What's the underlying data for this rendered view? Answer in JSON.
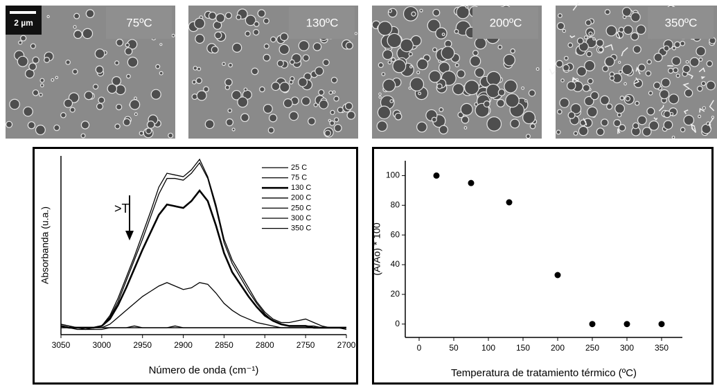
{
  "images": [
    {
      "label": "75ºC"
    },
    {
      "label": "130ºC"
    },
    {
      "label": "200ºC"
    },
    {
      "label": "350ºC"
    }
  ],
  "scale_bar": "2 µm",
  "chart_data": [
    {
      "type": "line",
      "xlabel": "Número de onda (cm⁻¹)",
      "ylabel": "Absorbanda (u.a.)",
      "annotation": ">T",
      "x": [
        3050,
        3040,
        3030,
        3020,
        3010,
        3000,
        2990,
        2980,
        2970,
        2960,
        2950,
        2940,
        2930,
        2920,
        2910,
        2900,
        2890,
        2880,
        2870,
        2860,
        2850,
        2840,
        2830,
        2820,
        2810,
        2800,
        2790,
        2780,
        2770,
        2760,
        2750,
        2740,
        2730,
        2720,
        2710,
        2700
      ],
      "xlim": [
        3050,
        2700
      ],
      "xticks": [
        3050,
        3000,
        2950,
        2900,
        2850,
        2800,
        2750,
        2700
      ],
      "ylim": [
        -3,
        100
      ],
      "legend": "upper right",
      "series": [
        {
          "name": "25 C",
          "color": "#000000",
          "linewidth": 1.3,
          "values": [
            3,
            2,
            1,
            1,
            1,
            2,
            8,
            18,
            30,
            42,
            55,
            68,
            82,
            90,
            89,
            88,
            92,
            98,
            88,
            72,
            52,
            40,
            32,
            24,
            16,
            10,
            6,
            4,
            4,
            5,
            6,
            4,
            2,
            1,
            1,
            1
          ]
        },
        {
          "name": "75 C",
          "color": "#000000",
          "linewidth": 1.3,
          "values": [
            3,
            2,
            1,
            1,
            1,
            2,
            7,
            16,
            28,
            40,
            52,
            65,
            78,
            87,
            87,
            86,
            90,
            96,
            87,
            70,
            50,
            38,
            30,
            22,
            15,
            9,
            5,
            3,
            2,
            2,
            2,
            2,
            1,
            1,
            1,
            1
          ]
        },
        {
          "name": "130 C",
          "color": "#000000",
          "linewidth": 2.6,
          "values": [
            2,
            1,
            1,
            1,
            1,
            2,
            6,
            14,
            24,
            35,
            46,
            56,
            66,
            72,
            71,
            70,
            74,
            80,
            74,
            60,
            44,
            33,
            26,
            19,
            13,
            8,
            5,
            3,
            2,
            2,
            2,
            1,
            1,
            1,
            1,
            1
          ]
        },
        {
          "name": "200 C",
          "color": "#000000",
          "linewidth": 1.3,
          "values": [
            2,
            1,
            1,
            1,
            1,
            1,
            3,
            7,
            11,
            15,
            19,
            22,
            25,
            27,
            25,
            23,
            24,
            27,
            26,
            21,
            15,
            11,
            8,
            6,
            4,
            3,
            2,
            1,
            1,
            1,
            1,
            1,
            1,
            1,
            1,
            1
          ]
        },
        {
          "name": "250 C",
          "color": "#000000",
          "linewidth": 1.3,
          "values": [
            1,
            1,
            1,
            1,
            1,
            1,
            1,
            1,
            1,
            1,
            1,
            1,
            1,
            1,
            1,
            1,
            1,
            1,
            1,
            1,
            1,
            1,
            1,
            1,
            1,
            1,
            1,
            1,
            1,
            1,
            1,
            1,
            1,
            1,
            1,
            1
          ]
        },
        {
          "name": "300 C",
          "color": "#000000",
          "linewidth": 1.3,
          "values": [
            2,
            1,
            0,
            0,
            1,
            1,
            1,
            1,
            1,
            2,
            1,
            1,
            1,
            1,
            1,
            1,
            1,
            1,
            1,
            1,
            1,
            1,
            1,
            1,
            1,
            1,
            1,
            1,
            1,
            1,
            1,
            1,
            1,
            1,
            1,
            1
          ]
        },
        {
          "name": "350 C",
          "color": "#000000",
          "linewidth": 1.3,
          "values": [
            1,
            1,
            1,
            0,
            0,
            0,
            1,
            1,
            1,
            1,
            1,
            1,
            1,
            1,
            2,
            1,
            1,
            1,
            1,
            1,
            1,
            1,
            1,
            1,
            1,
            1,
            1,
            1,
            1,
            1,
            1,
            1,
            1,
            1,
            1,
            0
          ]
        }
      ]
    },
    {
      "type": "scatter",
      "xlabel": "Temperatura de tratamiento térmico (ºC)",
      "ylabel": "(A/Ao) * 100",
      "x": [
        25,
        75,
        130,
        200,
        250,
        300,
        350
      ],
      "values": [
        100,
        95,
        82,
        33,
        0,
        0,
        0
      ],
      "color": "#000000",
      "xlim": [
        -20,
        380
      ],
      "xticks": [
        0,
        50,
        100,
        150,
        200,
        250,
        300,
        350
      ],
      "ylim": [
        -9,
        110
      ],
      "yticks": [
        0,
        20,
        40,
        60,
        80,
        100
      ]
    }
  ]
}
